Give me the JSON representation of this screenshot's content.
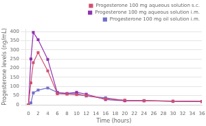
{
  "chart_data": {
    "type": "line",
    "xlabel": "Time (hours)",
    "ylabel": "Progesterone levels (ng/mL)",
    "x": [
      0,
      0.5,
      1,
      2,
      4,
      6,
      8,
      10,
      12,
      16,
      20,
      24,
      30,
      36
    ],
    "series": [
      {
        "name": "Progesterone 100 mg aqueous solution s.c.",
        "color": "#d05070",
        "marker": "square",
        "values": [
          0,
          120,
          230,
          285,
          185,
          60,
          58,
          55,
          50,
          32,
          25,
          22,
          20,
          18
        ]
      },
      {
        "name": "Progesterone 100 mg aqueous solution i.m.",
        "color": "#9030b0",
        "marker": "square",
        "values": [
          0,
          250,
          395,
          355,
          248,
          65,
          62,
          68,
          58,
          28,
          22,
          22,
          20,
          18
        ]
      },
      {
        "name": "Progesterone 100 mg oil solution i.m.",
        "color": "#7070c8",
        "marker": "square",
        "values": [
          0,
          10,
          65,
          80,
          92,
          68,
          60,
          60,
          48,
          38,
          23,
          23,
          18,
          18
        ]
      }
    ],
    "xlim": [
      -0.5,
      36
    ],
    "ylim": [
      0,
      415
    ],
    "xticks": [
      0,
      2,
      4,
      6,
      8,
      10,
      12,
      14,
      16,
      18,
      20,
      22,
      24,
      26,
      28,
      30,
      32,
      34,
      36
    ],
    "yticks": [
      0,
      50,
      100,
      150,
      200,
      250,
      300,
      350,
      400
    ],
    "grid": "y",
    "legend": "upper right"
  }
}
